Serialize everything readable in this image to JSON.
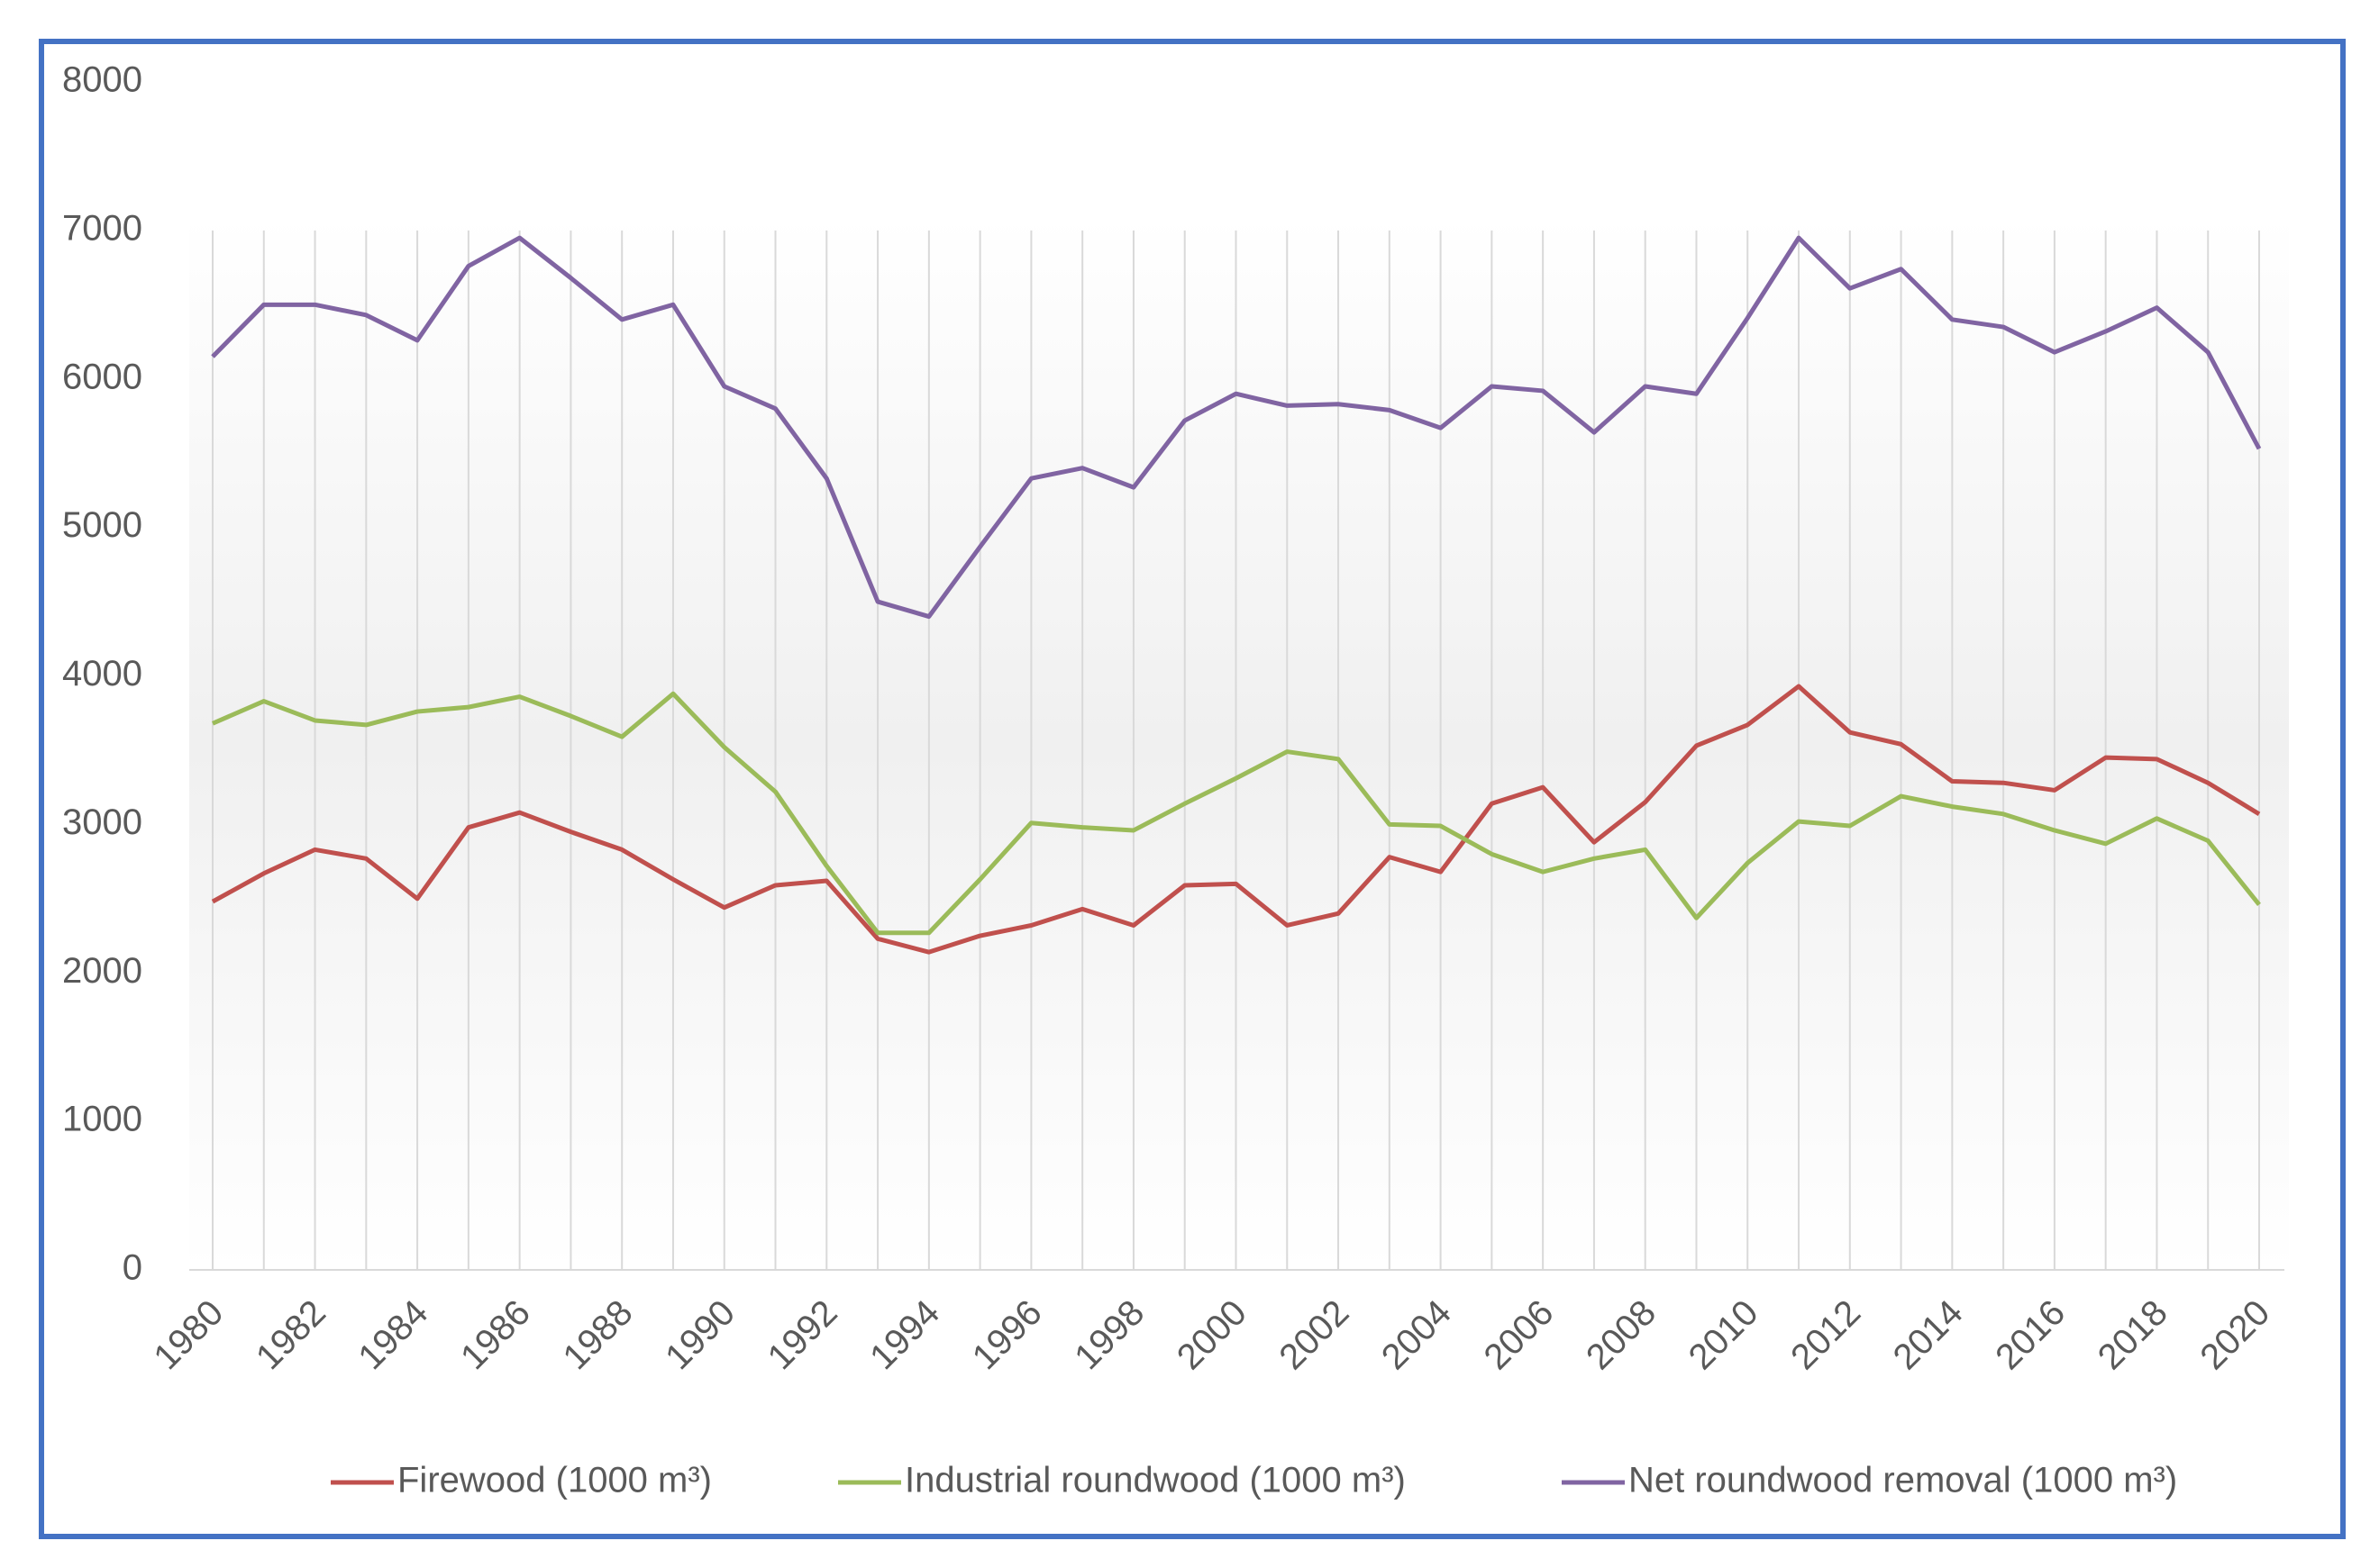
{
  "chart_data": {
    "type": "line",
    "x": [
      1980,
      1981,
      1982,
      1983,
      1984,
      1985,
      1986,
      1987,
      1988,
      1989,
      1990,
      1991,
      1992,
      1993,
      1994,
      1995,
      1996,
      1997,
      1998,
      1999,
      2000,
      2001,
      2002,
      2003,
      2004,
      2005,
      2006,
      2007,
      2008,
      2009,
      2010,
      2011,
      2012,
      2013,
      2014,
      2015,
      2016,
      2017,
      2018,
      2019,
      2020
    ],
    "xlim": [
      1980,
      2020
    ],
    "xticks": [
      1980,
      1982,
      1984,
      1986,
      1988,
      1990,
      1992,
      1994,
      1996,
      1998,
      2000,
      2002,
      2004,
      2006,
      2008,
      2010,
      2012,
      2014,
      2016,
      2018,
      2020
    ],
    "ylim": [
      0,
      8000
    ],
    "yticks": [
      0,
      1000,
      2000,
      3000,
      4000,
      5000,
      6000,
      7000,
      8000
    ],
    "grid": "x",
    "legend": "bottom",
    "series": [
      {
        "name": "Firewood (1000 m³)",
        "color": "#c0504d",
        "values": [
          2480,
          2670,
          2830,
          2770,
          2500,
          2980,
          3080,
          2950,
          2830,
          2630,
          2440,
          2590,
          2620,
          2230,
          2140,
          2250,
          2320,
          2430,
          2320,
          2590,
          2600,
          2320,
          2400,
          2780,
          2680,
          3140,
          3250,
          2880,
          3150,
          3530,
          3670,
          3930,
          3620,
          3540,
          3290,
          3280,
          3230,
          3450,
          3440,
          3280,
          3070
        ]
      },
      {
        "name": "Industrial roundwood (1000 m³)",
        "color": "#9bbb59",
        "values": [
          3680,
          3830,
          3700,
          3670,
          3760,
          3790,
          3860,
          3730,
          3590,
          3880,
          3520,
          3220,
          2720,
          2270,
          2270,
          2630,
          3010,
          2980,
          2960,
          3140,
          3310,
          3490,
          3440,
          3000,
          2990,
          2800,
          2680,
          2770,
          2830,
          2370,
          2740,
          3020,
          2990,
          3190,
          3120,
          3070,
          2960,
          2870,
          3040,
          2890,
          2460
        ]
      },
      {
        "name": "Net roundwood removal (1000 m³)",
        "color": "#8064a2",
        "values": [
          6150,
          6500,
          6500,
          6430,
          6260,
          6760,
          6950,
          6680,
          6400,
          6500,
          5950,
          5800,
          5330,
          4500,
          4400,
          4870,
          5330,
          5400,
          5270,
          5720,
          5900,
          5820,
          5830,
          5790,
          5670,
          5950,
          5920,
          5640,
          5950,
          5900,
          6410,
          6950,
          6610,
          6740,
          6400,
          6350,
          6180,
          6320,
          6480,
          6180,
          5530
        ]
      }
    ]
  }
}
